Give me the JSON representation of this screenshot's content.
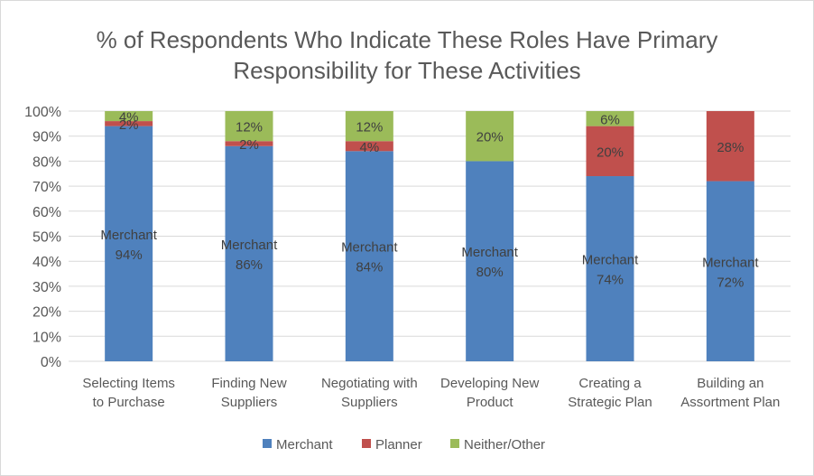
{
  "chart_data": {
    "type": "bar",
    "stacked": true,
    "title": "% of Respondents Who Indicate These Roles Have Primary Responsibility for These Activities",
    "title_lines": [
      "% of Respondents Who Indicate These Roles Have Primary",
      "Responsibility for These Activities"
    ],
    "categories": [
      "Selecting Items to Purchase",
      "Finding New Suppliers",
      "Negotiating with Suppliers",
      "Developing New Product",
      "Creating a Strategic Plan",
      "Building an Assortment Plan"
    ],
    "category_lines": [
      [
        "Selecting Items",
        "to Purchase"
      ],
      [
        "Finding New",
        "Suppliers"
      ],
      [
        "Negotiating with",
        "Suppliers"
      ],
      [
        "Developing New",
        "Product"
      ],
      [
        "Creating a",
        "Strategic Plan"
      ],
      [
        "Building an",
        "Assortment Plan"
      ]
    ],
    "series": [
      {
        "name": "Merchant",
        "color": "#4f81bd",
        "values": [
          94,
          86,
          84,
          80,
          74,
          72
        ]
      },
      {
        "name": "Planner",
        "color": "#c0504d",
        "values": [
          2,
          2,
          4,
          0,
          20,
          28
        ]
      },
      {
        "name": "Neither/Other",
        "color": "#9bbb59",
        "values": [
          4,
          12,
          12,
          20,
          6,
          0
        ]
      }
    ],
    "data_labels": {
      "Merchant": [
        "Merchant\n94%",
        "Merchant\n86%",
        "Merchant\n84%",
        "Merchant\n80%",
        "Merchant\n74%",
        "Merchant\n72%"
      ],
      "Planner": [
        "2%",
        "2%",
        "4%",
        null,
        "20%",
        "28%"
      ],
      "Neither/Other": [
        "4%",
        "12%",
        "12%",
        "20%",
        "6%",
        null
      ]
    },
    "yticks": [
      "0%",
      "10%",
      "20%",
      "30%",
      "40%",
      "50%",
      "60%",
      "70%",
      "80%",
      "90%",
      "100%"
    ],
    "ylim": [
      0,
      100
    ],
    "grid": true,
    "legend_position": "bottom",
    "gridline_color": "#d9d9d9",
    "text_color": "#595959"
  }
}
